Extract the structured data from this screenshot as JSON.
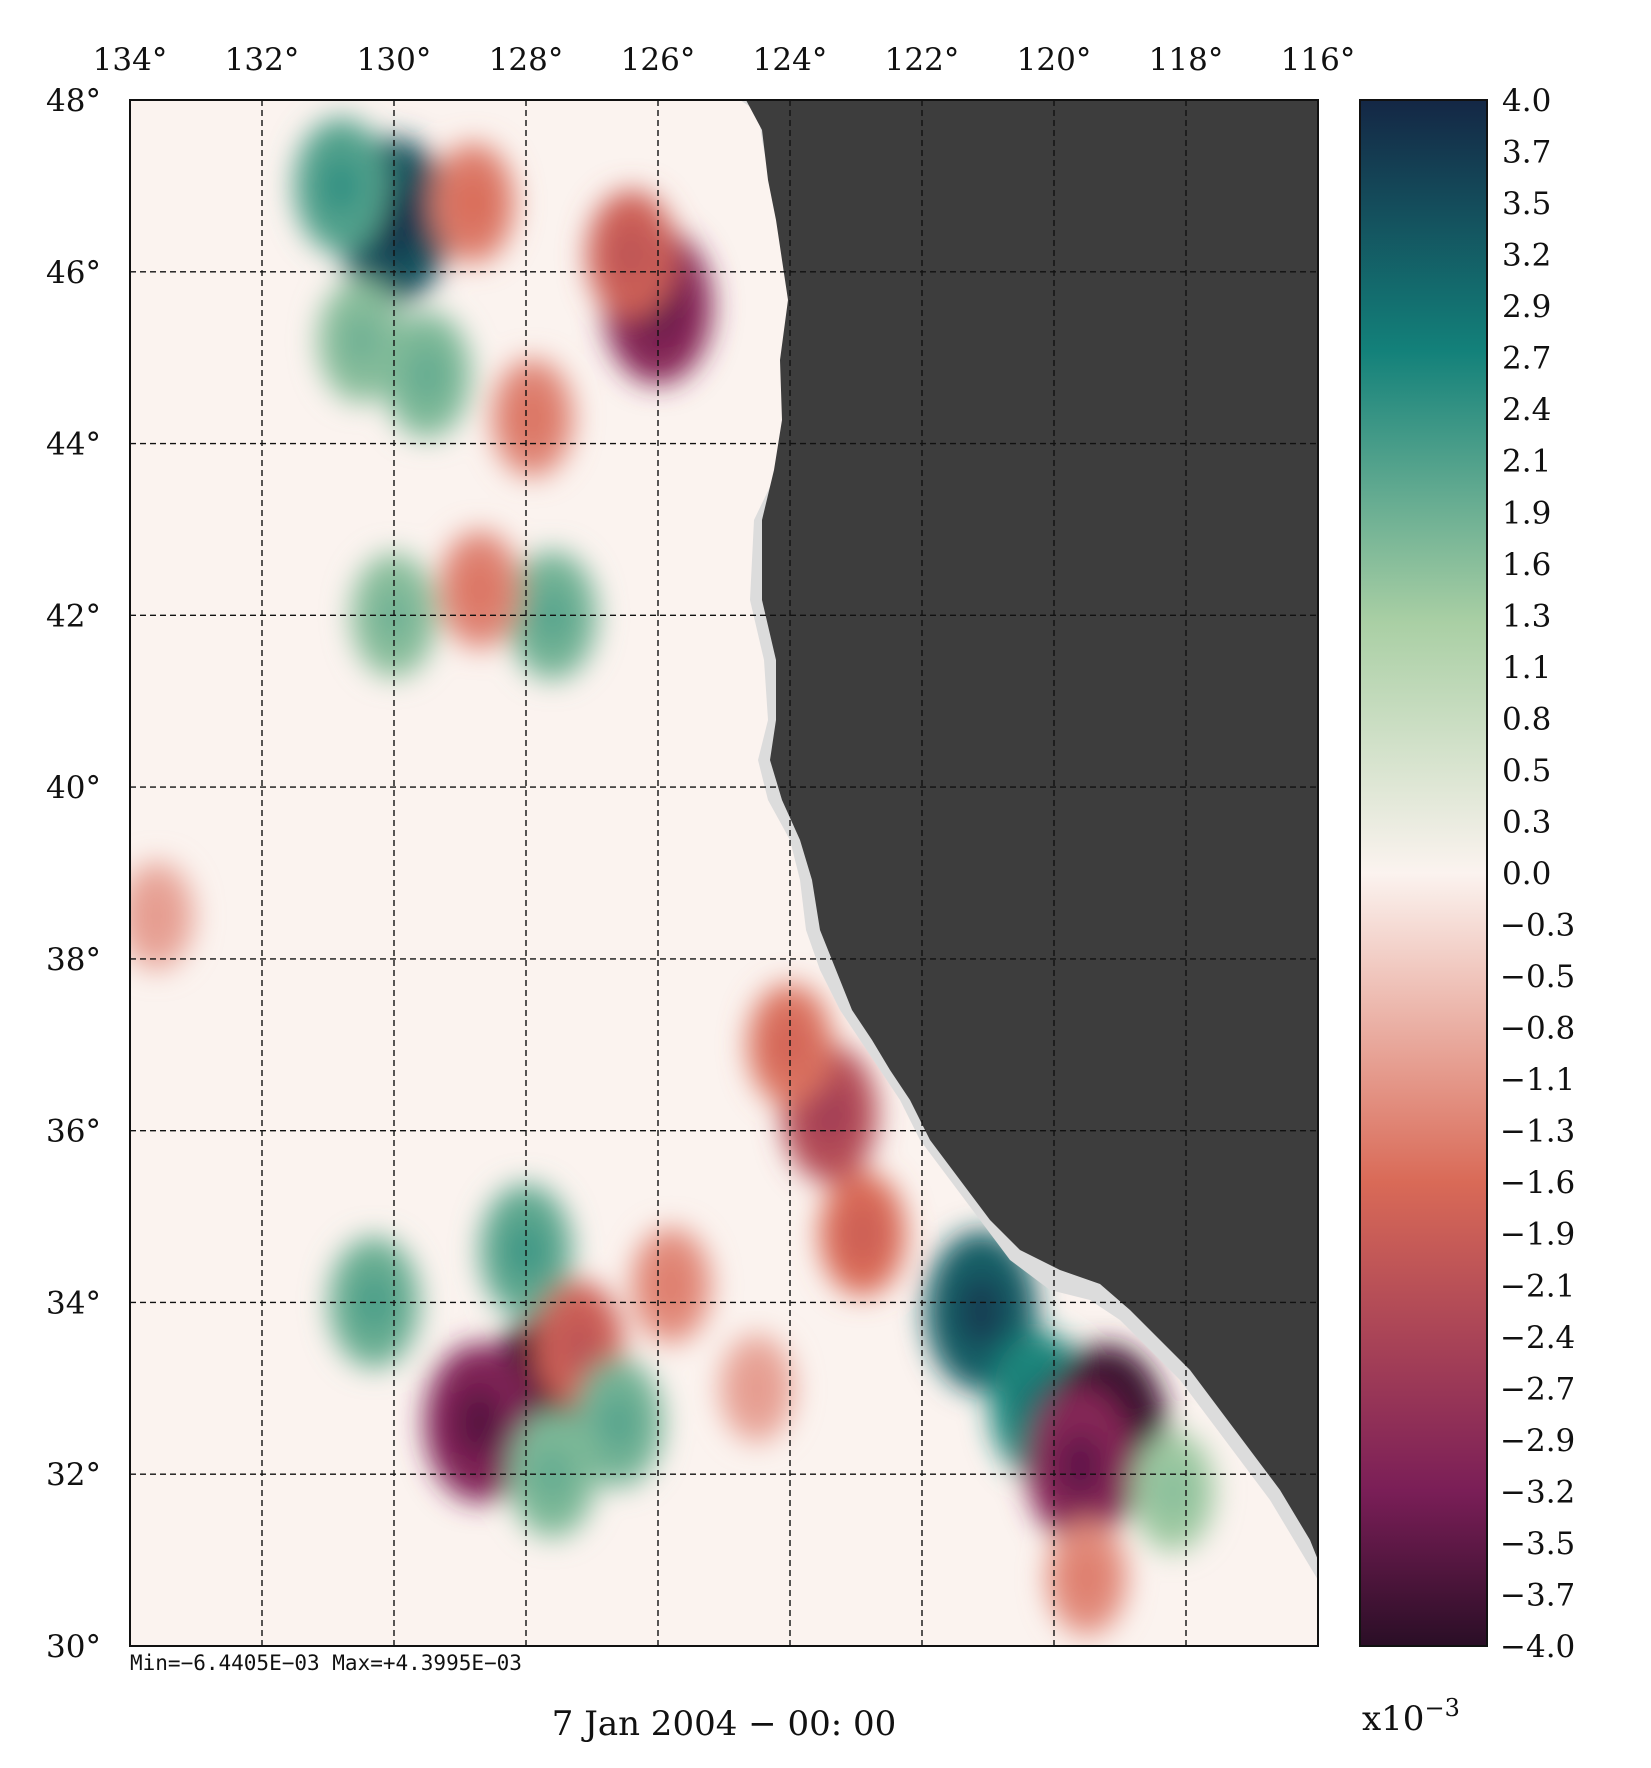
{
  "chart_data": {
    "type": "heatmap",
    "title": "",
    "lon_ticks": [
      "134°",
      "132°",
      "130°",
      "128°",
      "126°",
      "124°",
      "122°",
      "120°",
      "118°",
      "116°"
    ],
    "lat_ticks": [
      "48°",
      "46°",
      "44°",
      "42°",
      "40°",
      "38°",
      "36°",
      "34°",
      "32°",
      "30°"
    ],
    "lon_range": [
      134,
      116
    ],
    "lat_range": [
      30,
      48
    ],
    "grid": true,
    "colorbar": {
      "ticks": [
        "4.0",
        "3.7",
        "3.5",
        "3.2",
        "2.9",
        "2.7",
        "2.4",
        "2.1",
        "1.9",
        "1.6",
        "1.3",
        "1.1",
        "0.8",
        "0.5",
        "0.3",
        "0.0",
        "−0.3",
        "−0.5",
        "−0.8",
        "−1.1",
        "−1.3",
        "−1.6",
        "−1.9",
        "−2.1",
        "−2.4",
        "−2.7",
        "−2.9",
        "−3.2",
        "−3.5",
        "−3.7",
        "−4.0"
      ],
      "range": [
        -4.0,
        4.0
      ],
      "multiplier_base": "x10",
      "multiplier_exp": "−3",
      "placement": "right"
    },
    "colors": {
      "max": "#142745",
      "high": "#13817a",
      "mid_high": "#a9cfa4",
      "zero": "#fbf3ef",
      "mid_low": "#d96a57",
      "low": "#7a1e57",
      "min": "#2a0e26",
      "land": "#3d3d3d",
      "coast_mask": "#dcdcdc"
    },
    "features": [
      {
        "lon": 130.0,
        "lat": 46.6,
        "value": 3.4
      },
      {
        "lon": 130.8,
        "lat": 47.0,
        "value": 2.1
      },
      {
        "lon": 128.8,
        "lat": 46.8,
        "value": -1.4
      },
      {
        "lon": 126.0,
        "lat": 45.6,
        "value": -3.0
      },
      {
        "lon": 126.4,
        "lat": 46.2,
        "value": -1.8
      },
      {
        "lon": 130.5,
        "lat": 45.2,
        "value": 1.6
      },
      {
        "lon": 129.5,
        "lat": 44.8,
        "value": 1.7
      },
      {
        "lon": 127.9,
        "lat": 44.3,
        "value": -1.3
      },
      {
        "lon": 130.0,
        "lat": 42.0,
        "value": 1.6
      },
      {
        "lon": 127.6,
        "lat": 42.0,
        "value": 1.8
      },
      {
        "lon": 128.7,
        "lat": 42.3,
        "value": -1.3
      },
      {
        "lon": 123.4,
        "lat": 36.2,
        "value": -2.2
      },
      {
        "lon": 124.0,
        "lat": 37.0,
        "value": -1.5
      },
      {
        "lon": 122.9,
        "lat": 34.8,
        "value": -1.6
      },
      {
        "lon": 128.0,
        "lat": 34.6,
        "value": 2.0
      },
      {
        "lon": 130.3,
        "lat": 34.0,
        "value": 1.9
      },
      {
        "lon": 125.8,
        "lat": 34.2,
        "value": -1.2
      },
      {
        "lon": 121.1,
        "lat": 33.9,
        "value": 3.2
      },
      {
        "lon": 120.2,
        "lat": 32.8,
        "value": 2.6
      },
      {
        "lon": 119.2,
        "lat": 32.5,
        "value": -3.8
      },
      {
        "lon": 119.6,
        "lat": 32.1,
        "value": -3.0
      },
      {
        "lon": 127.7,
        "lat": 32.8,
        "value": -4.0
      },
      {
        "lon": 128.7,
        "lat": 32.6,
        "value": -3.1
      },
      {
        "lon": 127.2,
        "lat": 33.5,
        "value": -1.8
      },
      {
        "lon": 126.6,
        "lat": 32.6,
        "value": 1.8
      },
      {
        "lon": 127.6,
        "lat": 32.0,
        "value": 1.7
      },
      {
        "lon": 118.2,
        "lat": 31.8,
        "value": 1.4
      },
      {
        "lon": 119.5,
        "lat": 30.8,
        "value": -1.2
      },
      {
        "lon": 124.5,
        "lat": 33.0,
        "value": -0.9
      },
      {
        "lon": 133.6,
        "lat": 38.5,
        "value": -0.9
      }
    ],
    "stats_text": "Min=−6.4405E−03   Max=+4.3995E−03",
    "date_label": "7 Jan 2004 − 00: 00"
  }
}
